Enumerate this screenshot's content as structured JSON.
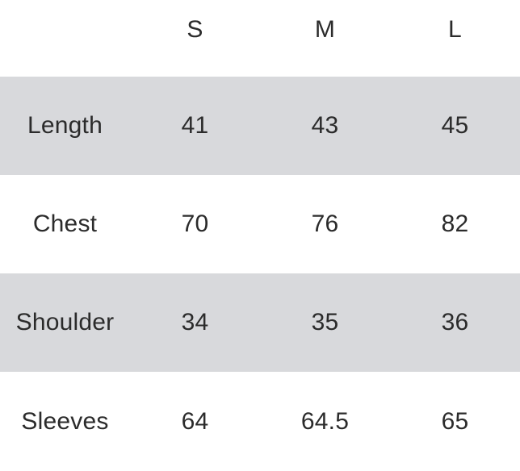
{
  "table": {
    "columns": [
      "",
      "S",
      "M",
      "L"
    ],
    "rows": [
      {
        "label": "Length",
        "values": [
          "41",
          "43",
          "45"
        ]
      },
      {
        "label": "Chest",
        "values": [
          "70",
          "76",
          "82"
        ]
      },
      {
        "label": "Shoulder",
        "values": [
          "34",
          "35",
          "36"
        ]
      },
      {
        "label": "Sleeves",
        "values": [
          "64",
          "64.5",
          "65"
        ]
      }
    ]
  },
  "chart_data": {
    "type": "table",
    "title": "",
    "columns": [
      "",
      "S",
      "M",
      "L"
    ],
    "row_labels": [
      "Length",
      "Chest",
      "Shoulder",
      "Sleeves"
    ],
    "series": [
      {
        "name": "S",
        "values": [
          41,
          70,
          34,
          64
        ]
      },
      {
        "name": "M",
        "values": [
          43,
          76,
          35,
          64.5
        ]
      },
      {
        "name": "L",
        "values": [
          45,
          82,
          36,
          65
        ]
      }
    ],
    "layout": {
      "striped_rows": [
        1,
        3
      ],
      "alignment": "center",
      "grid": "off"
    }
  },
  "colors": {
    "stripe": "#d8d9dc",
    "text": "#2b2b2b",
    "background": "#ffffff"
  }
}
